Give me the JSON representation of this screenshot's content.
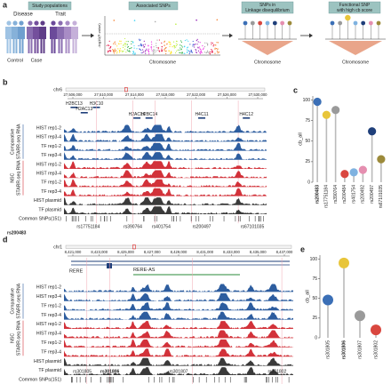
{
  "panel_a": {
    "letter": "a",
    "study_populations": "Study populations",
    "disease": "Disease",
    "trait": "Trait",
    "control": "Control",
    "case": "Case",
    "associated_snps": "Associated SNPs",
    "y_label": "-log10(P-value)",
    "x_label_1": "Chromosome",
    "ld_title": [
      "SNPs in",
      "Linkage disequilibrium"
    ],
    "x_label_2": "Chromosome",
    "functional_title": [
      "Functional SNP",
      "with high cb score"
    ],
    "x_label_3": "Chromosome"
  },
  "panel_b": {
    "letter": "b",
    "chrom": "chr6",
    "ticks": [
      "27,506,000",
      "27,510,000",
      "27,514,000",
      "27,518,000",
      "27,522,000",
      "27,526,000",
      "27,530,000"
    ],
    "genes": [
      "H2BC13",
      "H2AC13",
      "H3C10",
      "H2AC14",
      "H2BC14",
      "H4C11",
      "H4C12"
    ],
    "group_1": [
      "Comparative",
      "STARR-seq RNA"
    ],
    "group_2": [
      "NSC",
      "STARR-seq RNA"
    ],
    "tracks": [
      "HIST rep1-2",
      "HIST rep3-4",
      "TF rep1-2",
      "TF rep3-4",
      "HIST rep1-2",
      "HIST rep3-4",
      "TF rep1-2",
      "TF rep3-4",
      "HIST plasmid",
      "TF plasmid",
      "Common SNPs(151)"
    ],
    "snps": [
      "rs17751184",
      "rs390764",
      "rs401754",
      "rs200497",
      "rs67101035"
    ],
    "highlight": "rs200483"
  },
  "panel_c": {
    "letter": "c",
    "chart_data": {
      "type": "lollipop",
      "y_label": "cb_all",
      "ylim": [
        0,
        105
      ],
      "yticks": [
        0,
        25,
        50,
        75,
        100
      ],
      "categories": [
        "rs200483",
        "rs17751184",
        "rs390764",
        "rs200484",
        "rs401754",
        "rs200492",
        "rs200497",
        "rs67101035"
      ],
      "values": [
        98,
        82,
        88,
        10,
        12,
        15,
        62,
        28
      ],
      "colors": [
        "#3b6fb6",
        "#e8c53a",
        "#9a9a9a",
        "#d9473f",
        "#7fb2e0",
        "#e58fb0",
        "#1f3f7a",
        "#9c8a3a"
      ]
    }
  },
  "panel_d": {
    "letter": "d",
    "chrom": "chr1",
    "ticks": [
      "8,421,000",
      "8,423,000",
      "8,425,000",
      "8,427,000",
      "8,429,000",
      "8,431,000",
      "8,433,000",
      "8,435,000",
      "8,437,000"
    ],
    "genes": [
      "RERE",
      "RERE-AS"
    ],
    "group_1": [
      "Comparative",
      "STARR-seq RNA"
    ],
    "group_2": [
      "NSC",
      "STARR-seq RNA"
    ],
    "tracks": [
      "HIST rep1-2",
      "HIST rep3-4",
      "TF rep1-2",
      "TF rep3-4",
      "HIST rep1-2",
      "HIST rep3-4",
      "TF rep1-2",
      "TF rep3-4",
      "HIST plasmid",
      "TF plasmid",
      "Common SNPs(151)"
    ],
    "snps": [
      "rs301805",
      "rs301806",
      "rs301807",
      "rs301802"
    ]
  },
  "panel_e": {
    "letter": "e",
    "chart_data": {
      "type": "lollipop",
      "y_label": "cb_all",
      "ylim": [
        0,
        105
      ],
      "yticks": [
        0,
        25,
        50,
        75,
        100
      ],
      "categories": [
        "rs301805",
        "rs301806",
        "rs301807",
        "rs301802"
      ],
      "values": [
        48,
        95,
        28,
        10
      ],
      "colors": [
        "#3b6fb6",
        "#e8c53a",
        "#9a9a9a",
        "#d9473f"
      ]
    }
  }
}
